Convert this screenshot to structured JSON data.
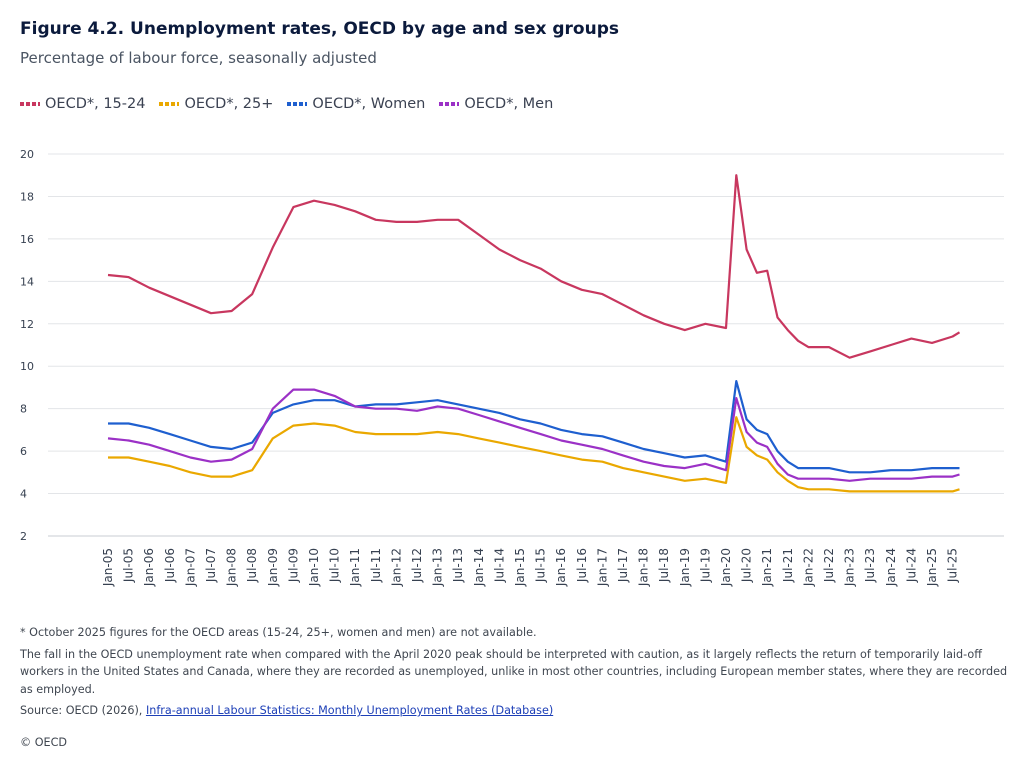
{
  "header": {
    "title": "Figure 4.2. Unemployment rates, OECD by age and sex groups",
    "subtitle": "Percentage of labour force, seasonally adjusted"
  },
  "chart_data": {
    "type": "line",
    "title": "Figure 4.2. Unemployment rates, OECD by age and sex groups",
    "subtitle": "Percentage of labour force, seasonally adjusted",
    "xlabel": "",
    "ylabel": "",
    "ylim": [
      2,
      20
    ],
    "yticks": [
      2,
      4,
      6,
      8,
      10,
      12,
      14,
      16,
      18,
      20
    ],
    "grid": "horizontal",
    "legend": "top-left",
    "x_tick_labels": [
      "Jan-05",
      "Jul-05",
      "Jan-06",
      "Jul-06",
      "Jan-07",
      "Jul-07",
      "Jan-08",
      "Jul-08",
      "Jan-09",
      "Jul-09",
      "Jan-10",
      "Jul-10",
      "Jan-11",
      "Jul-11",
      "Jan-12",
      "Jul-12",
      "Jan-13",
      "Jul-13",
      "Jan-14",
      "Jul-14",
      "Jan-15",
      "Jul-15",
      "Jan-16",
      "Jul-16",
      "Jan-17",
      "Jul-17",
      "Jan-18",
      "Jul-18",
      "Jan-19",
      "Jul-19",
      "Jan-20",
      "Jul-20",
      "Jan-21",
      "Jul-21",
      "Jan-22",
      "Jul-22",
      "Jan-23",
      "Jul-23",
      "Jan-24",
      "Jul-24",
      "Jan-25",
      "Jul-25"
    ],
    "x": [
      "Jan-05",
      "Jul-05",
      "Jan-06",
      "Jul-06",
      "Jan-07",
      "Jul-07",
      "Jan-08",
      "Jul-08",
      "Jan-09",
      "Jul-09",
      "Jan-10",
      "Jul-10",
      "Jan-11",
      "Jul-11",
      "Jan-12",
      "Jul-12",
      "Jan-13",
      "Jul-13",
      "Jan-14",
      "Jul-14",
      "Jan-15",
      "Jul-15",
      "Jan-16",
      "Jul-16",
      "Jan-17",
      "Jul-17",
      "Jan-18",
      "Jul-18",
      "Jan-19",
      "Jul-19",
      "Jan-20",
      "Apr-20",
      "Jul-20",
      "Oct-20",
      "Jan-21",
      "Apr-21",
      "Jul-21",
      "Oct-21",
      "Jan-22",
      "Jul-22",
      "Jan-23",
      "Jul-23",
      "Jan-24",
      "Jul-24",
      "Jan-25",
      "Jul-25",
      "Sep-25"
    ],
    "series": [
      {
        "name": "OECD*, 15-24",
        "color": "#c8375f",
        "values": [
          14.3,
          14.2,
          13.7,
          13.3,
          12.9,
          12.5,
          12.6,
          13.4,
          15.6,
          17.5,
          17.8,
          17.6,
          17.3,
          16.9,
          16.8,
          16.8,
          16.9,
          16.9,
          16.2,
          15.5,
          15.0,
          14.6,
          14.0,
          13.6,
          13.4,
          12.9,
          12.4,
          12.0,
          11.7,
          12.0,
          11.8,
          19.0,
          15.5,
          14.4,
          14.5,
          12.3,
          11.7,
          11.2,
          10.9,
          10.9,
          10.4,
          10.7,
          11.0,
          11.3,
          11.1,
          11.4,
          11.6
        ]
      },
      {
        "name": "OECD*, 25+",
        "color": "#eaa800",
        "values": [
          5.7,
          5.7,
          5.5,
          5.3,
          5.0,
          4.8,
          4.8,
          5.1,
          6.6,
          7.2,
          7.3,
          7.2,
          6.9,
          6.8,
          6.8,
          6.8,
          6.9,
          6.8,
          6.6,
          6.4,
          6.2,
          6.0,
          5.8,
          5.6,
          5.5,
          5.2,
          5.0,
          4.8,
          4.6,
          4.7,
          4.5,
          7.6,
          6.2,
          5.8,
          5.6,
          5.0,
          4.6,
          4.3,
          4.2,
          4.2,
          4.1,
          4.1,
          4.1,
          4.1,
          4.1,
          4.1,
          4.2
        ]
      },
      {
        "name": "OECD*, Women",
        "color": "#1e5fcf",
        "values": [
          7.3,
          7.3,
          7.1,
          6.8,
          6.5,
          6.2,
          6.1,
          6.4,
          7.8,
          8.2,
          8.4,
          8.4,
          8.1,
          8.2,
          8.2,
          8.3,
          8.4,
          8.2,
          8.0,
          7.8,
          7.5,
          7.3,
          7.0,
          6.8,
          6.7,
          6.4,
          6.1,
          5.9,
          5.7,
          5.8,
          5.5,
          9.3,
          7.5,
          7.0,
          6.8,
          6.0,
          5.5,
          5.2,
          5.2,
          5.2,
          5.0,
          5.0,
          5.1,
          5.1,
          5.2,
          5.2,
          5.2
        ]
      },
      {
        "name": "OECD*, Men",
        "color": "#9b31c6",
        "values": [
          6.6,
          6.5,
          6.3,
          6.0,
          5.7,
          5.5,
          5.6,
          6.1,
          8.0,
          8.9,
          8.9,
          8.6,
          8.1,
          8.0,
          8.0,
          7.9,
          8.1,
          8.0,
          7.7,
          7.4,
          7.1,
          6.8,
          6.5,
          6.3,
          6.1,
          5.8,
          5.5,
          5.3,
          5.2,
          5.4,
          5.1,
          8.5,
          6.9,
          6.4,
          6.2,
          5.4,
          4.9,
          4.7,
          4.7,
          4.7,
          4.6,
          4.7,
          4.7,
          4.7,
          4.8,
          4.8,
          4.9
        ]
      }
    ]
  },
  "notes": {
    "footnote": "* October 2025 figures for the OECD areas (15-24, 25+, women and men) are not available.",
    "caution": "The fall in the OECD unemployment rate when compared with the April 2020 peak should be interpreted with caution, as it largely reflects the return of temporarily laid-off workers in the United States and Canada, where they are recorded as unemployed, unlike in most other countries, including European member states, where they are recorded as employed.",
    "source_prefix": "Source: OECD (2026),",
    "source_link": "Infra-annual Labour Statistics: Monthly Unemployment Rates (Database)",
    "copyright": "© OECD"
  }
}
